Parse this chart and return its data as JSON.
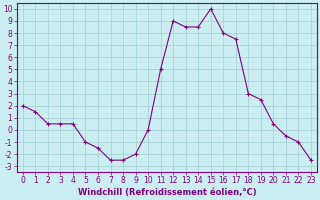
{
  "x": [
    0,
    1,
    2,
    3,
    4,
    5,
    6,
    7,
    8,
    9,
    10,
    11,
    12,
    13,
    14,
    15,
    16,
    17,
    18,
    19,
    20,
    21,
    22,
    23
  ],
  "y": [
    2,
    1.5,
    0.5,
    0.5,
    0.5,
    -1,
    -1.5,
    -2.5,
    -2.5,
    -2,
    0,
    5,
    9,
    8.5,
    8.5,
    10,
    8,
    7.5,
    3,
    2.5,
    0.5,
    -0.5,
    -1,
    -2.5
  ],
  "line_color": "#800080",
  "marker_color": "#800080",
  "bg_color": "#cbeef3",
  "grid_color": "#a0ccd4",
  "xlabel": "Windchill (Refroidissement éolien,°C)",
  "xlabel_color": "#800080",
  "tick_color": "#800080",
  "spine_color": "#800080",
  "ylim": [
    -3.5,
    10.5
  ],
  "xlim": [
    -0.5,
    23.5
  ],
  "yticks": [
    -3,
    -2,
    -1,
    0,
    1,
    2,
    3,
    4,
    5,
    6,
    7,
    8,
    9,
    10
  ],
  "xticks": [
    0,
    1,
    2,
    3,
    4,
    5,
    6,
    7,
    8,
    9,
    10,
    11,
    12,
    13,
    14,
    15,
    16,
    17,
    18,
    19,
    20,
    21,
    22,
    23
  ],
  "font_size": 5.5,
  "label_font_size": 6.0
}
